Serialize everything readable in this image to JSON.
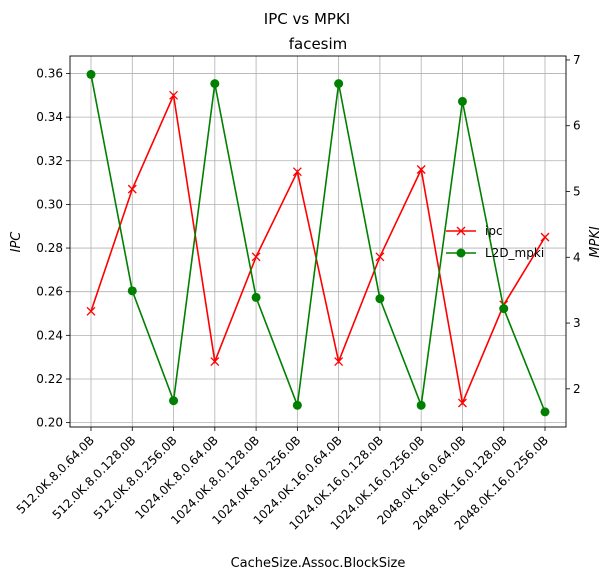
{
  "chart_data": {
    "type": "line",
    "suptitle": "IPC vs MPKI",
    "title": "facesim",
    "xlabel": "CacheSize.Assoc.BlockSize",
    "ylabel_left": "IPC",
    "ylabel_right": "MPKI",
    "categories": [
      "512.0K.8.0.64.0B",
      "512.0K.8.0.128.0B",
      "512.0K.8.0.256.0B",
      "1024.0K.8.0.64.0B",
      "1024.0K.8.0.128.0B",
      "1024.0K.8.0.256.0B",
      "1024.0K.16.0.64.0B",
      "1024.0K.16.0.128.0B",
      "1024.0K.16.0.256.0B",
      "2048.0K.16.0.64.0B",
      "2048.0K.16.0.128.0B",
      "2048.0K.16.0.256.0B"
    ],
    "ylim_left": [
      0.198,
      0.368
    ],
    "ylim_right": [
      1.42,
      7.06
    ],
    "yticks_left": [
      "0.20",
      "0.22",
      "0.24",
      "0.26",
      "0.28",
      "0.30",
      "0.32",
      "0.34",
      "0.36"
    ],
    "yticks_right": [
      "2",
      "3",
      "4",
      "5",
      "6",
      "7"
    ],
    "grid": true,
    "legend_position": "center-right",
    "series": [
      {
        "name": "ipc",
        "axis": "left",
        "color": "#ff0000",
        "marker": "x",
        "values": [
          0.251,
          0.307,
          0.35,
          0.228,
          0.276,
          0.315,
          0.228,
          0.276,
          0.316,
          0.209,
          0.254,
          0.285
        ]
      },
      {
        "name": "L2D_mpki",
        "axis": "right",
        "color": "#008000",
        "marker": "o",
        "values": [
          6.78,
          3.49,
          1.82,
          6.64,
          3.39,
          1.75,
          6.64,
          3.37,
          1.75,
          6.37,
          3.22,
          1.65
        ]
      }
    ]
  }
}
